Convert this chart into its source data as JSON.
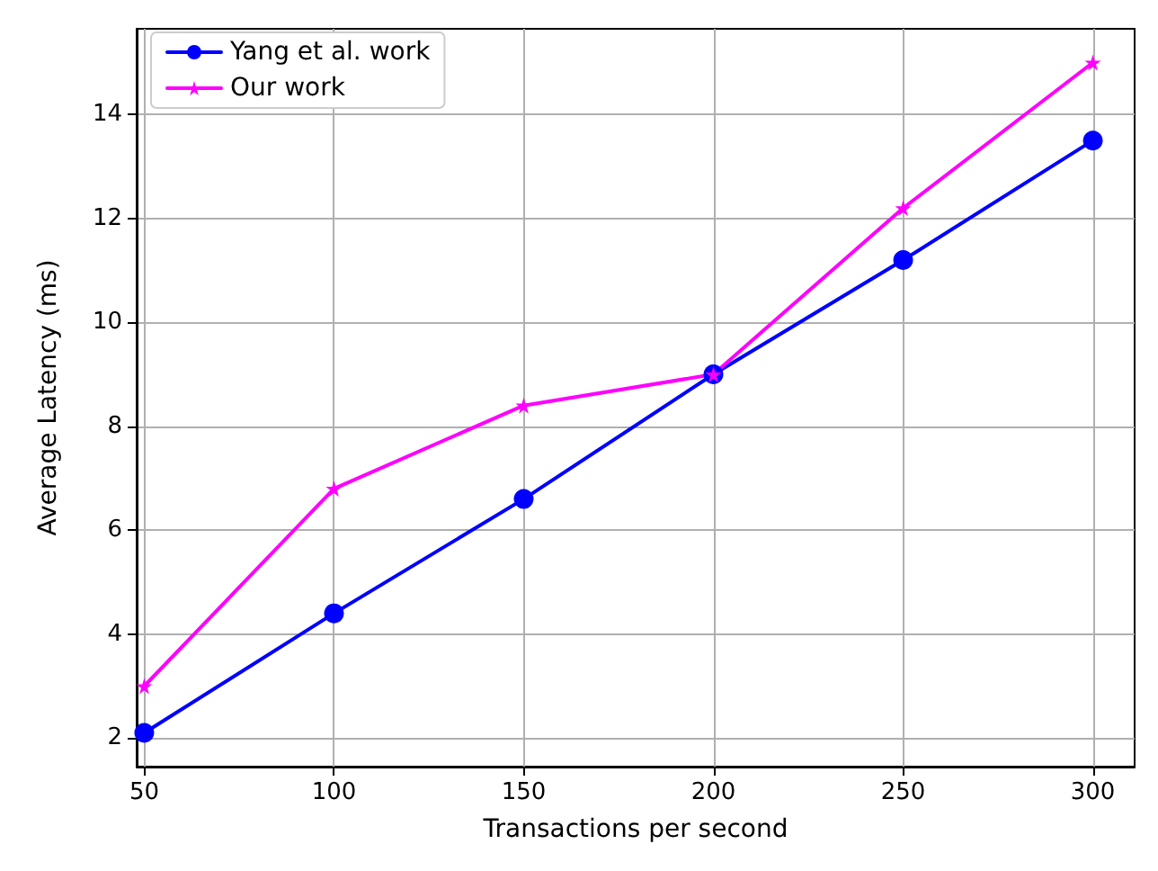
{
  "chart_data": {
    "type": "line",
    "xlabel": "Transactions per second",
    "ylabel": "Average Latency (ms)",
    "x": [
      50,
      100,
      150,
      200,
      250,
      300
    ],
    "series": [
      {
        "name": "Yang et al. work",
        "color": "#0000ff",
        "marker": "circle",
        "values": [
          2.1,
          4.4,
          6.6,
          9.0,
          11.2,
          13.5
        ]
      },
      {
        "name": "Our work",
        "color": "#ff00ff",
        "marker": "star",
        "values": [
          3.0,
          6.8,
          8.4,
          9.0,
          12.2,
          15.0
        ]
      }
    ],
    "xlim": [
      48,
      311
    ],
    "xticks": [
      50,
      100,
      150,
      200,
      250,
      300
    ],
    "ylim": [
      1.45,
      15.65
    ],
    "yticks": [
      2,
      4,
      6,
      8,
      10,
      12,
      14
    ],
    "grid": true,
    "legend": "top left",
    "line_style": "solid"
  }
}
